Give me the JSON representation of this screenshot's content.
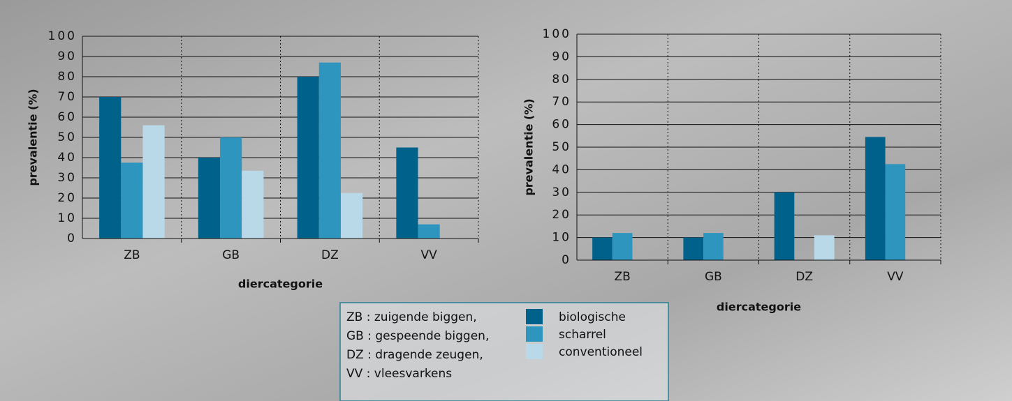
{
  "chart_data": [
    {
      "type": "bar",
      "xlabel": "diercategorie",
      "ylabel": "prevalentie (%)",
      "categories": [
        "ZB",
        "GB",
        "DZ",
        "VV"
      ],
      "series": [
        {
          "name": "biologische",
          "color": "#00628b",
          "values": [
            70,
            40,
            80,
            45
          ]
        },
        {
          "name": "scharrel",
          "color": "#2e95bf",
          "values": [
            37.5,
            50,
            87,
            7
          ]
        },
        {
          "name": "conventioneel",
          "color": "#b9d9e8",
          "values": [
            56,
            33.5,
            22.5,
            0
          ]
        }
      ],
      "ylim": [
        0,
        100
      ],
      "yticks": [
        0,
        10,
        20,
        30,
        40,
        50,
        60,
        70,
        80,
        90,
        100
      ],
      "grid": true
    },
    {
      "type": "bar",
      "xlabel": "diercategorie",
      "ylabel": "prevalentie (%)",
      "categories": [
        "ZB",
        "GB",
        "DZ",
        "VV"
      ],
      "series": [
        {
          "name": "biologische",
          "color": "#00628b",
          "values": [
            10,
            10,
            30,
            54.5
          ]
        },
        {
          "name": "scharrel",
          "color": "#2e95bf",
          "values": [
            12,
            12,
            0,
            42.5
          ]
        },
        {
          "name": "conventioneel",
          "color": "#b9d9e8",
          "values": [
            0,
            0,
            11,
            0
          ]
        }
      ],
      "ylim": [
        0,
        100
      ],
      "yticks": [
        0,
        10,
        20,
        30,
        40,
        50,
        60,
        70,
        80,
        90,
        100
      ],
      "grid": true
    }
  ],
  "legend_notes": [
    "ZB : zuigende biggen,",
    "GB : gespeende biggen,",
    "DZ : dragende zeugen,",
    "VV : vleesvarkens"
  ]
}
